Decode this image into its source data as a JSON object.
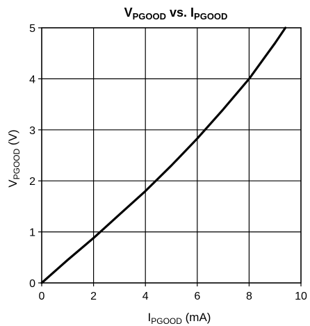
{
  "chart_data": {
    "type": "line",
    "title": {
      "v_main": "V",
      "v_sub": "PGOOD",
      "mid": " vs. ",
      "i_main": "I",
      "i_sub": "PGOOD"
    },
    "xlabel": {
      "main": "I",
      "sub": "PGOOD",
      "unit": " (mA)"
    },
    "ylabel": {
      "main": "V",
      "sub": "PGOOD",
      "unit": " (V)"
    },
    "xlim": [
      0,
      10
    ],
    "ylim": [
      0,
      5
    ],
    "xticks": [
      "0",
      "2",
      "4",
      "6",
      "8",
      "10"
    ],
    "yticks": [
      "0",
      "1",
      "2",
      "3",
      "4",
      "5"
    ],
    "grid": true,
    "series": [
      {
        "color": "#000000",
        "x": [
          0,
          1,
          2,
          3,
          4,
          5,
          6,
          7,
          8,
          9,
          9.4
        ],
        "y": [
          0,
          0.45,
          0.88,
          1.34,
          1.8,
          2.3,
          2.83,
          3.4,
          4.0,
          4.7,
          5.0
        ]
      }
    ]
  }
}
